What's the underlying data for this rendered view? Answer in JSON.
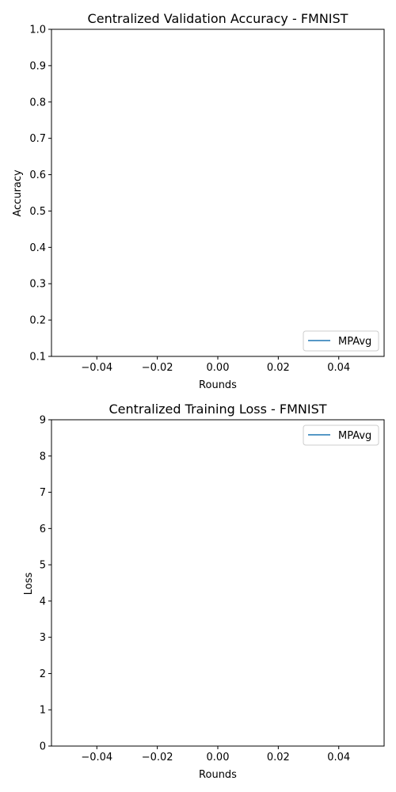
{
  "chart_data": [
    {
      "type": "line",
      "title": "Centralized Validation Accuracy - FMNIST",
      "xlabel": "Rounds",
      "ylabel": "Accuracy",
      "xlim": [
        -0.055,
        0.055
      ],
      "ylim": [
        0.1,
        1.0
      ],
      "xticks": [
        -0.04,
        -0.02,
        0.0,
        0.02,
        0.04
      ],
      "xtick_labels": [
        "−0.04",
        "−0.02",
        "0.00",
        "0.02",
        "0.04"
      ],
      "yticks": [
        0.1,
        0.2,
        0.3,
        0.4,
        0.5,
        0.6,
        0.7,
        0.8,
        0.9,
        1.0
      ],
      "ytick_labels": [
        "0.1",
        "0.2",
        "0.3",
        "0.4",
        "0.5",
        "0.6",
        "0.7",
        "0.8",
        "0.9",
        "1.0"
      ],
      "grid": false,
      "legend_position": "lower-right",
      "series": [
        {
          "name": "MPAvg",
          "color": "#1f77b4",
          "x": [],
          "y": []
        }
      ]
    },
    {
      "type": "line",
      "title": "Centralized Training Loss - FMNIST",
      "xlabel": "Rounds",
      "ylabel": "Loss",
      "xlim": [
        -0.055,
        0.055
      ],
      "ylim": [
        0,
        9
      ],
      "xticks": [
        -0.04,
        -0.02,
        0.0,
        0.02,
        0.04
      ],
      "xtick_labels": [
        "−0.04",
        "−0.02",
        "0.00",
        "0.02",
        "0.04"
      ],
      "yticks": [
        0,
        1,
        2,
        3,
        4,
        5,
        6,
        7,
        8,
        9
      ],
      "ytick_labels": [
        "0",
        "1",
        "2",
        "3",
        "4",
        "5",
        "6",
        "7",
        "8",
        "9"
      ],
      "grid": false,
      "legend_position": "upper-right",
      "series": [
        {
          "name": "MPAvg",
          "color": "#1f77b4",
          "x": [],
          "y": []
        }
      ]
    }
  ]
}
